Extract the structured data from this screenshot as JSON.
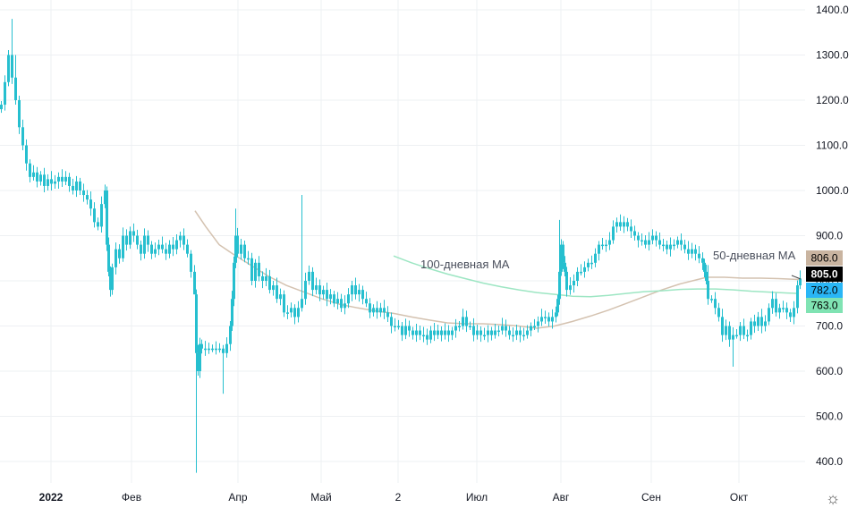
{
  "chart_data": {
    "type": "candlestick",
    "ylim": [
      370,
      1400
    ],
    "y_ticks": [
      "1400.0",
      "1300.0",
      "1200.0",
      "1100.0",
      "1000.0",
      "900.0",
      "800.0",
      "700.0",
      "600.0",
      "500.0",
      "400.0"
    ],
    "x_ticks": [
      {
        "label": "2022",
        "bold": true
      },
      {
        "label": "Фев",
        "bold": false
      },
      {
        "label": "Апр",
        "bold": false
      },
      {
        "label": "Май",
        "bold": false
      },
      {
        "label": "2",
        "bold": false
      },
      {
        "label": "Июл",
        "bold": false
      },
      {
        "label": "Авг",
        "bold": false
      },
      {
        "label": "Сен",
        "bold": false
      },
      {
        "label": "Окт",
        "bold": false
      }
    ],
    "annotations": {
      "ma100": "100-дневная MA",
      "ma50": "50-дневная MA"
    },
    "price_badges": [
      {
        "label": "806.0",
        "value": 806,
        "bg": "#c9b4a0",
        "fg": "#000000"
      },
      {
        "label": "805.0",
        "value": 805,
        "bg": "#000000",
        "fg": "#ffffff"
      },
      {
        "label": "782.0",
        "value": 782,
        "bg": "#29b6f6",
        "fg": "#000000"
      },
      {
        "label": "763.0",
        "value": 763,
        "bg": "#80e3b3",
        "fg": "#000000"
      }
    ],
    "colors": {
      "candle": "#26bfcf",
      "ma50": "#d4c2b0",
      "ma100": "#9de6c3",
      "grid": "#eef0f3"
    },
    "close_path": [
      [
        0,
        1190
      ],
      [
        4,
        1240
      ],
      [
        8,
        1300
      ],
      [
        12,
        1250
      ],
      [
        16,
        1200
      ],
      [
        20,
        1140
      ],
      [
        24,
        1100
      ],
      [
        28,
        1060
      ],
      [
        32,
        1030
      ],
      [
        36,
        1040
      ],
      [
        40,
        1020
      ],
      [
        44,
        1035
      ],
      [
        48,
        1010
      ],
      [
        52,
        1025
      ],
      [
        56,
        1015
      ],
      [
        60,
        1020
      ],
      [
        64,
        1030
      ],
      [
        68,
        1020
      ],
      [
        72,
        1030
      ],
      [
        76,
        1010
      ],
      [
        80,
        1000
      ],
      [
        84,
        1020
      ],
      [
        88,
        1000
      ],
      [
        92,
        990
      ],
      [
        96,
        980
      ],
      [
        100,
        960
      ],
      [
        104,
        930
      ],
      [
        108,
        920
      ],
      [
        112,
        970
      ],
      [
        116,
        1000
      ],
      [
        118,
        880
      ],
      [
        120,
        820
      ],
      [
        122,
        780
      ],
      [
        124,
        830
      ],
      [
        128,
        870
      ],
      [
        132,
        850
      ],
      [
        136,
        900
      ],
      [
        140,
        880
      ],
      [
        144,
        910
      ],
      [
        148,
        900
      ],
      [
        152,
        880
      ],
      [
        156,
        860
      ],
      [
        160,
        900
      ],
      [
        164,
        880
      ],
      [
        168,
        860
      ],
      [
        172,
        870
      ],
      [
        176,
        880
      ],
      [
        180,
        870
      ],
      [
        184,
        860
      ],
      [
        188,
        880
      ],
      [
        192,
        870
      ],
      [
        196,
        890
      ],
      [
        200,
        900
      ],
      [
        204,
        880
      ],
      [
        208,
        860
      ],
      [
        212,
        820
      ],
      [
        216,
        770
      ],
      [
        218,
        640
      ],
      [
        220,
        600
      ],
      [
        222,
        660
      ],
      [
        224,
        650
      ],
      [
        228,
        650
      ],
      [
        232,
        650
      ],
      [
        236,
        650
      ],
      [
        240,
        650
      ],
      [
        244,
        650
      ],
      [
        248,
        640
      ],
      [
        252,
        660
      ],
      [
        256,
        700
      ],
      [
        258,
        760
      ],
      [
        260,
        840
      ],
      [
        262,
        900
      ],
      [
        264,
        860
      ],
      [
        268,
        880
      ],
      [
        272,
        850
      ],
      [
        276,
        850
      ],
      [
        280,
        800
      ],
      [
        284,
        840
      ],
      [
        288,
        810
      ],
      [
        292,
        800
      ],
      [
        296,
        810
      ],
      [
        300,
        780
      ],
      [
        304,
        790
      ],
      [
        308,
        760
      ],
      [
        312,
        770
      ],
      [
        316,
        730
      ],
      [
        320,
        730
      ],
      [
        324,
        740
      ],
      [
        328,
        720
      ],
      [
        332,
        740
      ],
      [
        336,
        760
      ],
      [
        340,
        800
      ],
      [
        344,
        820
      ],
      [
        348,
        780
      ],
      [
        352,
        790
      ],
      [
        356,
        770
      ],
      [
        360,
        780
      ],
      [
        364,
        760
      ],
      [
        368,
        770
      ],
      [
        372,
        750
      ],
      [
        376,
        760
      ],
      [
        380,
        740
      ],
      [
        384,
        750
      ],
      [
        388,
        770
      ],
      [
        392,
        790
      ],
      [
        396,
        770
      ],
      [
        400,
        780
      ],
      [
        404,
        760
      ],
      [
        408,
        750
      ],
      [
        412,
        730
      ],
      [
        416,
        740
      ],
      [
        420,
        730
      ],
      [
        424,
        740
      ],
      [
        428,
        730
      ],
      [
        432,
        720
      ],
      [
        436,
        700
      ],
      [
        440,
        700
      ],
      [
        444,
        700
      ],
      [
        448,
        680
      ],
      [
        452,
        700
      ],
      [
        456,
        690
      ],
      [
        460,
        680
      ],
      [
        464,
        690
      ],
      [
        468,
        680
      ],
      [
        472,
        680
      ],
      [
        476,
        670
      ],
      [
        480,
        690
      ],
      [
        484,
        680
      ],
      [
        488,
        690
      ],
      [
        492,
        680
      ],
      [
        496,
        690
      ],
      [
        500,
        680
      ],
      [
        504,
        690
      ],
      [
        508,
        700
      ],
      [
        512,
        700
      ],
      [
        516,
        720
      ],
      [
        520,
        700
      ],
      [
        524,
        700
      ],
      [
        528,
        680
      ],
      [
        532,
        690
      ],
      [
        536,
        680
      ],
      [
        540,
        680
      ],
      [
        544,
        690
      ],
      [
        548,
        680
      ],
      [
        552,
        690
      ],
      [
        556,
        690
      ],
      [
        560,
        700
      ],
      [
        564,
        690
      ],
      [
        568,
        680
      ],
      [
        572,
        680
      ],
      [
        576,
        690
      ],
      [
        580,
        680
      ],
      [
        584,
        680
      ],
      [
        588,
        690
      ],
      [
        592,
        700
      ],
      [
        596,
        700
      ],
      [
        600,
        710
      ],
      [
        604,
        720
      ],
      [
        608,
        720
      ],
      [
        612,
        710
      ],
      [
        616,
        720
      ],
      [
        620,
        730
      ],
      [
        622,
        760
      ],
      [
        624,
        820
      ],
      [
        626,
        880
      ],
      [
        628,
        840
      ],
      [
        630,
        820
      ],
      [
        632,
        780
      ],
      [
        636,
        790
      ],
      [
        640,
        800
      ],
      [
        644,
        820
      ],
      [
        648,
        820
      ],
      [
        652,
        830
      ],
      [
        656,
        840
      ],
      [
        660,
        840
      ],
      [
        664,
        860
      ],
      [
        668,
        880
      ],
      [
        672,
        880
      ],
      [
        676,
        880
      ],
      [
        680,
        890
      ],
      [
        684,
        920
      ],
      [
        688,
        930
      ],
      [
        692,
        920
      ],
      [
        696,
        930
      ],
      [
        700,
        920
      ],
      [
        704,
        910
      ],
      [
        708,
        900
      ],
      [
        712,
        890
      ],
      [
        716,
        890
      ],
      [
        720,
        880
      ],
      [
        724,
        890
      ],
      [
        728,
        900
      ],
      [
        732,
        890
      ],
      [
        736,
        880
      ],
      [
        740,
        880
      ],
      [
        744,
        870
      ],
      [
        748,
        880
      ],
      [
        752,
        880
      ],
      [
        756,
        890
      ],
      [
        760,
        880
      ],
      [
        764,
        870
      ],
      [
        768,
        860
      ],
      [
        772,
        870
      ],
      [
        776,
        860
      ],
      [
        780,
        850
      ],
      [
        784,
        840
      ],
      [
        786,
        820
      ],
      [
        788,
        800
      ],
      [
        790,
        760
      ],
      [
        794,
        760
      ],
      [
        798,
        740
      ],
      [
        802,
        720
      ],
      [
        806,
        680
      ],
      [
        810,
        700
      ],
      [
        814,
        670
      ],
      [
        818,
        680
      ],
      [
        822,
        680
      ],
      [
        826,
        700
      ],
      [
        830,
        680
      ],
      [
        834,
        680
      ],
      [
        838,
        710
      ],
      [
        842,
        700
      ],
      [
        846,
        720
      ],
      [
        850,
        700
      ],
      [
        854,
        710
      ],
      [
        858,
        740
      ],
      [
        862,
        760
      ],
      [
        866,
        730
      ],
      [
        870,
        740
      ],
      [
        874,
        740
      ],
      [
        878,
        730
      ],
      [
        882,
        720
      ],
      [
        886,
        740
      ],
      [
        890,
        790
      ],
      [
        893,
        805
      ]
    ],
    "ma50": [
      [
        218,
        955
      ],
      [
        230,
        920
      ],
      [
        245,
        880
      ],
      [
        260,
        860
      ],
      [
        280,
        835
      ],
      [
        300,
        810
      ],
      [
        320,
        790
      ],
      [
        340,
        775
      ],
      [
        360,
        760
      ],
      [
        380,
        748
      ],
      [
        400,
        740
      ],
      [
        420,
        733
      ],
      [
        440,
        728
      ],
      [
        460,
        720
      ],
      [
        480,
        713
      ],
      [
        500,
        707
      ],
      [
        520,
        705
      ],
      [
        540,
        705
      ],
      [
        560,
        703
      ],
      [
        580,
        700
      ],
      [
        600,
        695
      ],
      [
        620,
        700
      ],
      [
        640,
        710
      ],
      [
        660,
        722
      ],
      [
        680,
        735
      ],
      [
        700,
        750
      ],
      [
        720,
        765
      ],
      [
        740,
        780
      ],
      [
        760,
        793
      ],
      [
        780,
        803
      ],
      [
        790,
        808
      ],
      [
        810,
        808
      ],
      [
        830,
        806
      ],
      [
        850,
        806
      ],
      [
        870,
        805
      ],
      [
        893,
        803
      ]
    ],
    "ma100": [
      [
        440,
        855
      ],
      [
        460,
        840
      ],
      [
        480,
        827
      ],
      [
        500,
        815
      ],
      [
        520,
        805
      ],
      [
        540,
        795
      ],
      [
        560,
        787
      ],
      [
        580,
        780
      ],
      [
        600,
        774
      ],
      [
        620,
        770
      ],
      [
        640,
        766
      ],
      [
        660,
        765
      ],
      [
        680,
        768
      ],
      [
        700,
        772
      ],
      [
        720,
        776
      ],
      [
        740,
        778
      ],
      [
        760,
        781
      ],
      [
        780,
        782
      ],
      [
        800,
        782
      ],
      [
        820,
        780
      ],
      [
        840,
        777
      ],
      [
        860,
        775
      ],
      [
        880,
        773
      ],
      [
        893,
        772
      ]
    ]
  }
}
